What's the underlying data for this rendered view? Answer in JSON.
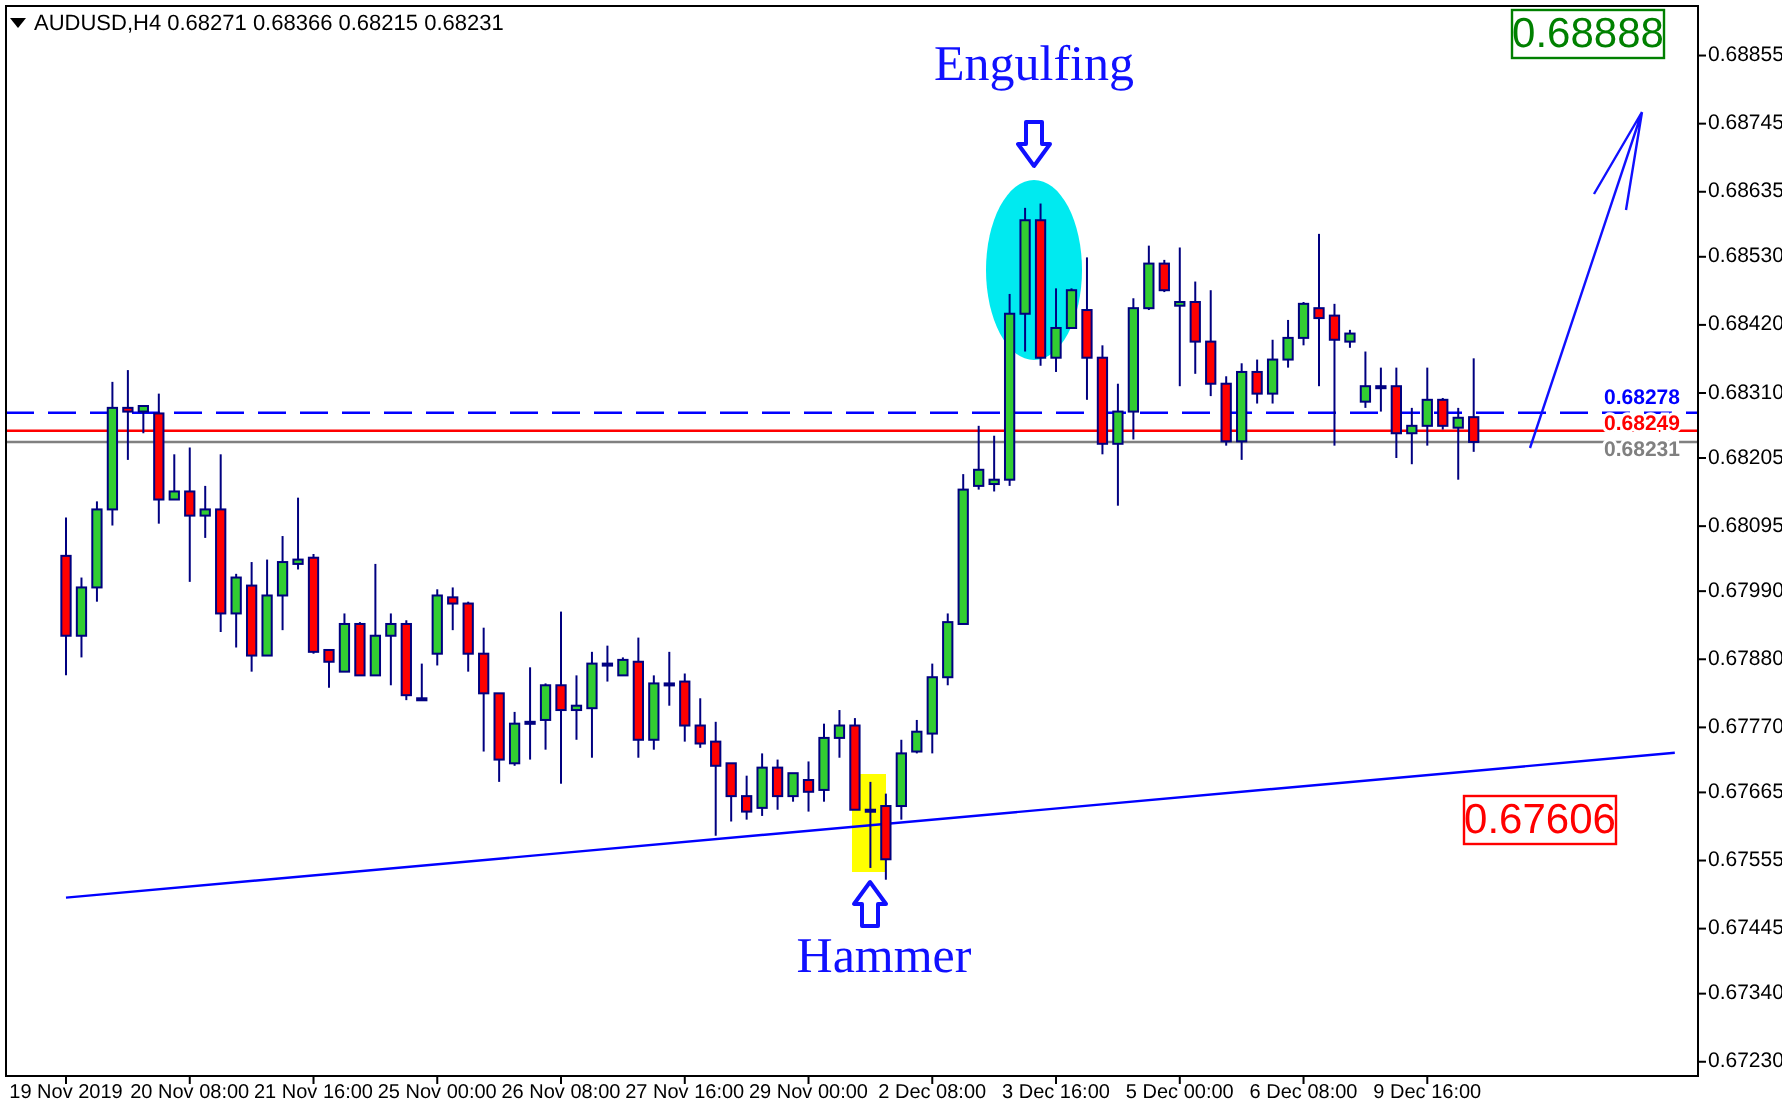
{
  "chart_data": {
    "type": "candlestick",
    "title": "AUDUSD,H4  0.68271 0.68366 0.68215 0.68231",
    "categories": [
      "19 Nov 2019",
      null,
      null,
      null,
      null,
      null,
      null,
      null,
      "20 Nov 08:00",
      null,
      null,
      null,
      null,
      null,
      null,
      null,
      "21 Nov 16:00",
      null,
      null,
      null,
      null,
      null,
      null,
      null,
      "25 Nov 00:00",
      null,
      null,
      null,
      null,
      null,
      null,
      null,
      "26 Nov 08:00",
      null,
      null,
      null,
      null,
      null,
      null,
      null,
      "27 Nov 16:00",
      null,
      null,
      null,
      null,
      null,
      null,
      null,
      "29 Nov 00:00",
      null,
      null,
      null,
      null,
      null,
      null,
      null,
      "2 Dec 08:00",
      null,
      null,
      null,
      null,
      null,
      null,
      null,
      "3 Dec 16:00",
      null,
      null,
      null,
      null,
      null,
      null,
      null,
      "5 Dec 00:00",
      null,
      null,
      null,
      null,
      null,
      null,
      null,
      "6 Dec 08:00",
      null,
      null,
      null,
      null,
      null,
      null,
      null,
      "9 Dec 16:00",
      null,
      null,
      null,
      null,
      null,
      null,
      null,
      null,
      null,
      null,
      null,
      null,
      null,
      null,
      null,
      null,
      null
    ],
    "ohlc": [
      [
        0.68047,
        0.68109,
        0.67854,
        0.67918
      ],
      [
        0.67918,
        0.68012,
        0.67883,
        0.67996
      ],
      [
        0.67996,
        0.68135,
        0.67973,
        0.68122
      ],
      [
        0.68122,
        0.68328,
        0.68096,
        0.68286
      ],
      [
        0.68286,
        0.68347,
        0.68202,
        0.6828
      ],
      [
        0.6828,
        0.68289,
        0.68245,
        0.68289
      ],
      [
        0.68277,
        0.68309,
        0.68099,
        0.68138
      ],
      [
        0.68138,
        0.68211,
        0.68138,
        0.68151
      ],
      [
        0.68151,
        0.68222,
        0.68005,
        0.68112
      ],
      [
        0.68112,
        0.6816,
        0.68076,
        0.68122
      ],
      [
        0.68122,
        0.68211,
        0.67924,
        0.67954
      ],
      [
        0.67954,
        0.68018,
        0.67899,
        0.68012
      ],
      [
        0.67999,
        0.68037,
        0.6786,
        0.67886
      ],
      [
        0.67886,
        0.68041,
        0.67886,
        0.67983
      ],
      [
        0.67983,
        0.68079,
        0.67927,
        0.68037
      ],
      [
        0.68034,
        0.68141,
        0.68025,
        0.68041
      ],
      [
        0.68044,
        0.6805,
        0.67889,
        0.67892
      ],
      [
        0.67895,
        0.67895,
        0.67834,
        0.67876
      ],
      [
        0.6786,
        0.67954,
        0.6786,
        0.67937
      ],
      [
        0.67937,
        0.6794,
        0.67854,
        0.67854
      ],
      [
        0.67854,
        0.68034,
        0.67854,
        0.67918
      ],
      [
        0.67918,
        0.67954,
        0.67838,
        0.67937
      ],
      [
        0.67937,
        0.67943,
        0.67814,
        0.67822
      ],
      [
        0.67817,
        0.67873,
        0.67814,
        0.67817
      ],
      [
        0.67889,
        0.67993,
        0.6787,
        0.67983
      ],
      [
        0.6798,
        0.67996,
        0.67927,
        0.6797
      ],
      [
        0.6797,
        0.67973,
        0.6786,
        0.67889
      ],
      [
        0.67889,
        0.67931,
        0.67731,
        0.67825
      ],
      [
        0.67825,
        0.67825,
        0.67682,
        0.67718
      ],
      [
        0.67712,
        0.67795,
        0.67708,
        0.67776
      ],
      [
        0.67779,
        0.67867,
        0.67718,
        0.67779
      ],
      [
        0.67782,
        0.67841,
        0.67734,
        0.67838
      ],
      [
        0.67838,
        0.67957,
        0.67679,
        0.67798
      ],
      [
        0.67798,
        0.67854,
        0.6775,
        0.67805
      ],
      [
        0.67801,
        0.67892,
        0.67721,
        0.67873
      ],
      [
        0.67873,
        0.67902,
        0.67844,
        0.67873
      ],
      [
        0.67854,
        0.67883,
        0.67854,
        0.67879
      ],
      [
        0.67876,
        0.67915,
        0.67721,
        0.6775
      ],
      [
        0.6775,
        0.67854,
        0.67734,
        0.67841
      ],
      [
        0.67841,
        0.67892,
        0.67805,
        0.67841
      ],
      [
        0.67844,
        0.67857,
        0.67747,
        0.67773
      ],
      [
        0.67773,
        0.67817,
        0.67737,
        0.67744
      ],
      [
        0.67747,
        0.67779,
        0.67595,
        0.67708
      ],
      [
        0.67712,
        0.67712,
        0.67618,
        0.67659
      ],
      [
        0.67659,
        0.67692,
        0.67621,
        0.67634
      ],
      [
        0.6764,
        0.67728,
        0.67627,
        0.67705
      ],
      [
        0.67705,
        0.67718,
        0.67637,
        0.67659
      ],
      [
        0.67659,
        0.67696,
        0.6765,
        0.67696
      ],
      [
        0.67685,
        0.67715,
        0.67634,
        0.67666
      ],
      [
        0.67669,
        0.67776,
        0.6765,
        0.67753
      ],
      [
        0.67753,
        0.67798,
        0.67721,
        0.67773
      ],
      [
        0.67773,
        0.67785,
        0.67637,
        0.67637
      ],
      [
        0.67637,
        0.67682,
        0.67543,
        0.67637
      ],
      [
        0.67643,
        0.67663,
        0.67524,
        0.67557
      ],
      [
        0.67643,
        0.6775,
        0.67621,
        0.67728
      ],
      [
        0.67731,
        0.67782,
        0.67728,
        0.67763
      ],
      [
        0.6776,
        0.67873,
        0.67728,
        0.67851
      ],
      [
        0.67851,
        0.67954,
        0.67838,
        0.6794
      ],
      [
        0.67937,
        0.68179,
        0.67937,
        0.68154
      ],
      [
        0.6816,
        0.68257,
        0.68154,
        0.68186
      ],
      [
        0.68163,
        0.68241,
        0.68151,
        0.6817
      ],
      [
        0.6817,
        0.6847,
        0.6816,
        0.68438
      ],
      [
        0.68438,
        0.68609,
        0.68377,
        0.68589
      ],
      [
        0.68589,
        0.68616,
        0.68354,
        0.68367
      ],
      [
        0.68367,
        0.68479,
        0.68344,
        0.68415
      ],
      [
        0.68415,
        0.68479,
        0.68415,
        0.68476
      ],
      [
        0.68444,
        0.68529,
        0.68299,
        0.68367
      ],
      [
        0.68367,
        0.68387,
        0.68211,
        0.68228
      ],
      [
        0.68228,
        0.68325,
        0.68128,
        0.6828
      ],
      [
        0.6828,
        0.68463,
        0.68235,
        0.68447
      ],
      [
        0.68447,
        0.68548,
        0.68444,
        0.68519
      ],
      [
        0.68519,
        0.68525,
        0.68473,
        0.68476
      ],
      [
        0.68451,
        0.68545,
        0.68321,
        0.68457
      ],
      [
        0.68457,
        0.6849,
        0.68341,
        0.68393
      ],
      [
        0.68393,
        0.68476,
        0.68305,
        0.68325
      ],
      [
        0.68325,
        0.68337,
        0.68225,
        0.68232
      ],
      [
        0.68232,
        0.68358,
        0.68202,
        0.68344
      ],
      [
        0.68344,
        0.68364,
        0.68293,
        0.68309
      ],
      [
        0.68309,
        0.68396,
        0.68293,
        0.68364
      ],
      [
        0.68364,
        0.68428,
        0.68351,
        0.68399
      ],
      [
        0.68399,
        0.68457,
        0.68387,
        0.68454
      ],
      [
        0.68447,
        0.68567,
        0.68321,
        0.68431
      ],
      [
        0.68435,
        0.68454,
        0.68225,
        0.68396
      ],
      [
        0.68393,
        0.68412,
        0.68383,
        0.68406
      ],
      [
        0.68296,
        0.68377,
        0.68286,
        0.68321
      ],
      [
        0.68321,
        0.68351,
        0.6828,
        0.68321
      ],
      [
        0.68321,
        0.68351,
        0.68205,
        0.68245
      ],
      [
        0.68245,
        0.68286,
        0.68195,
        0.68257
      ],
      [
        0.68257,
        0.68351,
        0.68225,
        0.68299
      ],
      [
        0.68299,
        0.68302,
        0.68251,
        0.68257
      ],
      [
        0.68254,
        0.68286,
        0.6817,
        0.6827
      ],
      [
        0.68271,
        0.68366,
        0.68215,
        0.68231
      ],
      null,
      null,
      null,
      null,
      null,
      null,
      null,
      null,
      null,
      null,
      null,
      null,
      null,
      null
    ],
    "series": [
      {
        "type": "line",
        "color": "#0000ff",
        "values": [
          0.67495,
          null,
          null,
          null,
          null,
          null,
          null,
          null,
          null,
          null,
          null,
          null,
          null,
          null,
          null,
          null,
          null,
          null,
          null,
          null,
          null,
          null,
          null,
          null,
          null,
          null,
          null,
          null,
          null,
          null,
          null,
          null,
          null,
          null,
          null,
          null,
          null,
          null,
          null,
          null,
          null,
          null,
          null,
          null,
          null,
          null,
          null,
          null,
          null,
          null,
          null,
          null,
          null,
          null,
          null,
          null,
          null,
          null,
          null,
          null,
          null,
          null,
          null,
          null,
          null,
          null,
          null,
          null,
          null,
          null,
          null,
          null,
          null,
          null,
          null,
          null,
          null,
          null,
          null,
          null,
          null,
          null,
          null,
          null,
          null,
          null,
          null,
          null,
          null,
          null,
          null,
          null,
          null,
          null,
          null,
          null,
          null,
          null,
          null,
          null,
          null,
          null,
          null,
          null,
          0.67729,
          null
        ]
      }
    ],
    "ylim": [
      0.67207,
      0.68935
    ],
    "yticks": [
      0.68855,
      0.68745,
      0.68635,
      {
        "value": 0.6853,
        "label": "0.68530"
      },
      {
        "value": 0.6842,
        "label": "0.68420"
      },
      {
        "value": 0.6831,
        "label": "0.68310"
      },
      0.68205,
      0.68095,
      {
        "value": 0.6799,
        "label": "0.67990"
      },
      {
        "value": 0.6788,
        "label": "0.67880"
      },
      {
        "value": 0.6777,
        "label": "0.67770"
      },
      0.67665,
      0.67555,
      0.67445,
      {
        "value": 0.6734,
        "label": "0.67340"
      },
      {
        "value": 0.6723,
        "label": "0.67230"
      }
    ],
    "ref_lines": [
      {
        "axis": "y",
        "value": 0.68278,
        "label": "0.68278",
        "color": "#0000ff",
        "line_style": "dashed"
      },
      {
        "axis": "y",
        "value": 0.68249,
        "label": "0.68249",
        "color": "#ff0000",
        "line_style": "solid"
      },
      {
        "axis": "y",
        "value": 0.68231,
        "label": "0.68231",
        "color": "#808080",
        "line_style": "solid"
      }
    ],
    "annotations": [
      "Engulfing",
      "Hammer",
      "0.68888",
      "0.67606"
    ]
  }
}
